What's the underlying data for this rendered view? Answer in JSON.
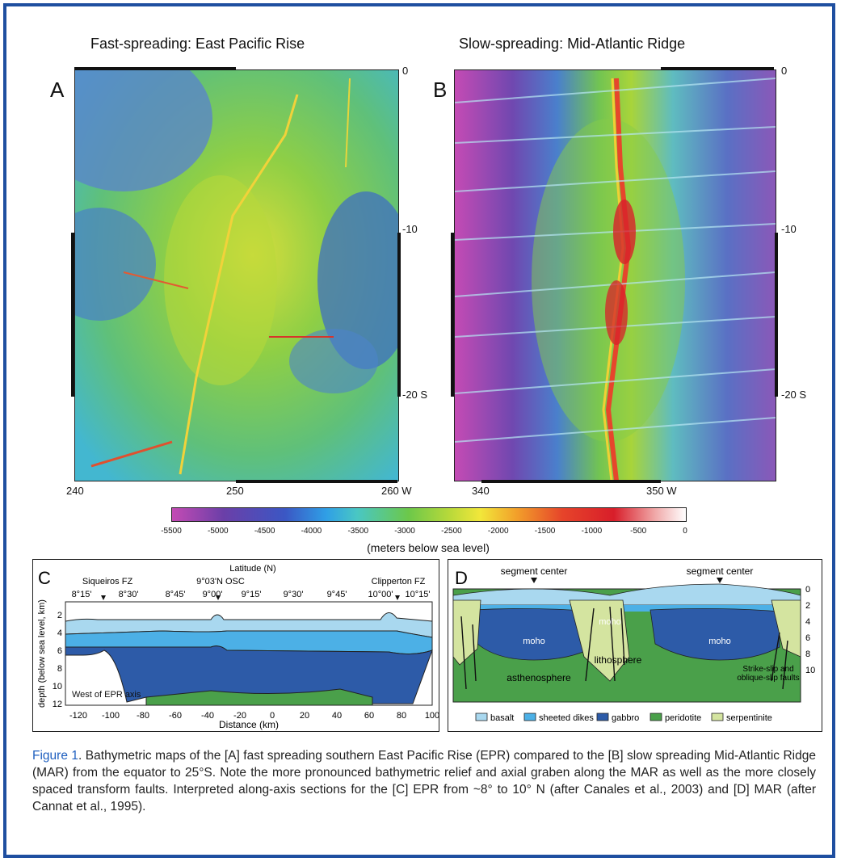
{
  "panel_a": {
    "title": "Fast-spreading: East Pacific Rise",
    "letter": "A",
    "right_ticks": [
      "0",
      "-10",
      "-20 S"
    ],
    "bottom_ticks": [
      "240",
      "250",
      "260 W"
    ]
  },
  "panel_b": {
    "title": "Slow-spreading: Mid-Atlantic Ridge",
    "letter": "B",
    "right_ticks": [
      "0",
      "-10",
      "-20 S"
    ],
    "bottom_ticks": [
      "340",
      "350 W"
    ]
  },
  "colorbar": {
    "ticks": [
      "-5500",
      "-5000",
      "-4500",
      "-4000",
      "-3500",
      "-3000",
      "-2500",
      "-2000",
      "-1500",
      "-1000",
      "-500",
      "0"
    ],
    "label": "(meters below sea level)"
  },
  "panel_c": {
    "letter": "C",
    "top_axis_title": "Latitude (N)",
    "feature_labels": [
      "Siqueiros FZ",
      "9°03'N OSC",
      "Clipperton FZ"
    ],
    "lat_ticks": [
      "8°15'",
      "8°30'",
      "8°45'",
      "9°00'",
      "9°15'",
      "9°30'",
      "9°45'",
      "10°00'",
      "10°15'"
    ],
    "y_label": "depth (below sea level, km)",
    "y_ticks": [
      "2",
      "4",
      "6",
      "8",
      "10",
      "12"
    ],
    "x_ticks": [
      "-120",
      "-100",
      "-80",
      "-60",
      "-40",
      "-20",
      "0",
      "20",
      "40",
      "60",
      "80",
      "100"
    ],
    "x_label": "Distance (km)",
    "annotation": "West of EPR axis"
  },
  "panel_d": {
    "letter": "D",
    "segment_labels": [
      "segment center",
      "segment center"
    ],
    "moho_labels": [
      "moho",
      "moho",
      "moho"
    ],
    "lithosphere": "lithosphere",
    "asthenosphere": "asthenosphere",
    "faults": [
      "Strike-slip and",
      "oblique-slip faults"
    ],
    "y_ticks": [
      "0",
      "2",
      "4",
      "6",
      "8",
      "10"
    ],
    "legend": [
      {
        "label": "basalt",
        "color": "#a9d8ef"
      },
      {
        "label": "sheeted dikes",
        "color": "#4cb0e6"
      },
      {
        "label": "gabbro",
        "color": "#2d5ba8"
      },
      {
        "label": "peridotite",
        "color": "#4aa04a"
      },
      {
        "label": "serpentinite",
        "color": "#d4e4a0"
      }
    ]
  },
  "caption": {
    "lead": "Figure 1",
    "text": ". Bathymetric maps of the [A] fast spreading southern East Pacific Rise (EPR) compared to the [B] slow spreading Mid-Atlantic Ridge (MAR) from the equator to 25°S.  Note the more pronounced bathymetric relief and axial graben along the MAR as well as the more closely spaced transform faults. Interpreted along-axis sections for the [C] EPR from ~8° to 10° N (after Canales et al., 2003) and [D] MAR (after Cannat et al., 1995)."
  }
}
